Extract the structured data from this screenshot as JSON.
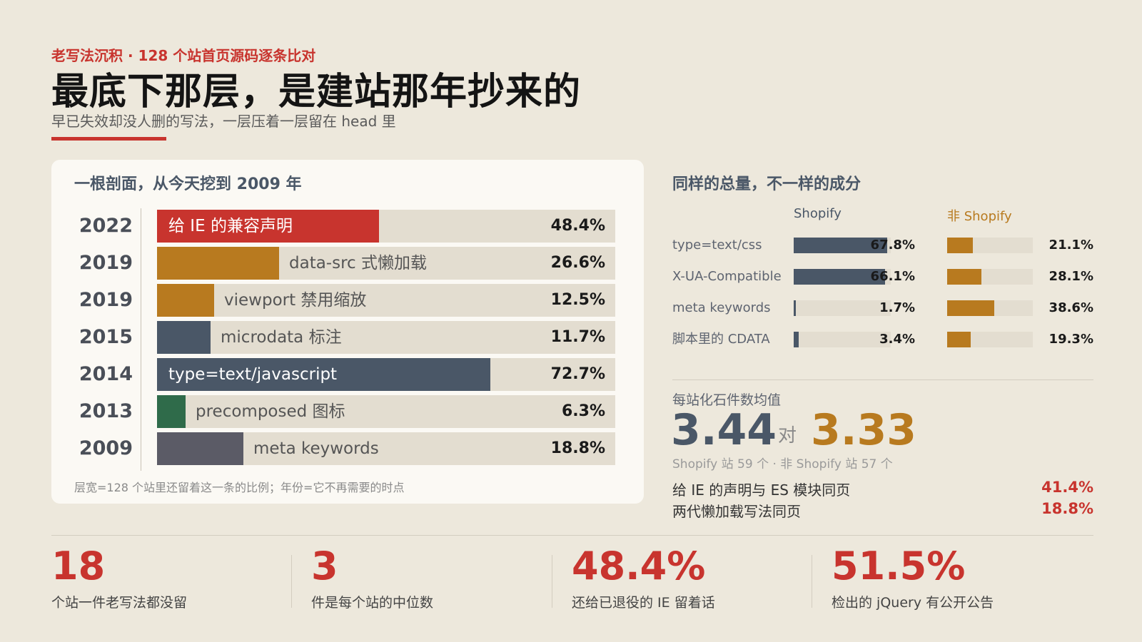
{
  "header": {
    "kicker": "老写法沉积 · 128 个站首页源码逐条比对",
    "title": "最底下那层，是建站那年抄来的",
    "subtitle": "早已失效却没人删的写法，一层压着一层留在 head 里"
  },
  "colors": {
    "red": "#c8342e",
    "ochre": "#b87a1f",
    "slate": "#4a5767",
    "green": "#2f6b4a",
    "gray": "#5b5b66",
    "track": "#e3ddd0"
  },
  "chart_data": [
    {
      "type": "bar",
      "title": "一根剖面，从今天挖到 2009 年",
      "note": "层宽=128 个站里还留着这一条的比例；年份=它不再需要的时点",
      "xlim": [
        0,
        100
      ],
      "rows": [
        {
          "year": "2022",
          "label": "给 IE 的兼容声明",
          "value": 48.4,
          "value_label": "48.4%",
          "color": "#c8342e"
        },
        {
          "year": "2019",
          "label": "data-src 式懒加载",
          "value": 26.6,
          "value_label": "26.6%",
          "color": "#b87a1f"
        },
        {
          "year": "2019",
          "label": "viewport 禁用缩放",
          "value": 12.5,
          "value_label": "12.5%",
          "color": "#b87a1f"
        },
        {
          "year": "2015",
          "label": "microdata 标注",
          "value": 11.7,
          "value_label": "11.7%",
          "color": "#4a5767"
        },
        {
          "year": "2014",
          "label": "type=text/javascript",
          "value": 72.7,
          "value_label": "72.7%",
          "color": "#4a5767"
        },
        {
          "year": "2013",
          "label": "precomposed 图标",
          "value": 6.3,
          "value_label": "6.3%",
          "color": "#2f6b4a"
        },
        {
          "year": "2009",
          "label": "meta keywords",
          "value": 18.8,
          "value_label": "18.8%",
          "color": "#5b5b66"
        }
      ]
    },
    {
      "type": "bar",
      "title": "同样的总量，不一样的成分",
      "xlim": [
        0,
        100
      ],
      "categories": [
        "type=text/css",
        "X-UA-Compatible",
        "meta keywords",
        "脚本里的 CDATA"
      ],
      "series": [
        {
          "name": "Shopify",
          "color": "#4a5767",
          "values": [
            67.8,
            66.1,
            1.7,
            3.4
          ],
          "labels": [
            "67.8%",
            "66.1%",
            "1.7%",
            "3.4%"
          ]
        },
        {
          "name": "非 Shopify",
          "color": "#b87a1f",
          "values": [
            21.1,
            28.1,
            38.6,
            19.3
          ],
          "labels": [
            "21.1%",
            "28.1%",
            "38.6%",
            "19.3%"
          ]
        }
      ]
    }
  ],
  "averages": {
    "label": "每站化石件数均值",
    "shopify": "3.44",
    "vs": "对",
    "non_shopify": "3.33",
    "note": "Shopify 站 59 个 · 非 Shopify 站 57 个"
  },
  "cooccurrence": [
    {
      "label": "给 IE 的声明与 ES 模块同页",
      "value": "41.4%"
    },
    {
      "label": "两代懒加载写法同页",
      "value": "18.8%"
    }
  ],
  "stats": [
    {
      "number": "18",
      "caption": "个站一件老写法都没留"
    },
    {
      "number": "3",
      "caption": "件是每个站的中位数"
    },
    {
      "number": "48.4%",
      "caption": "还给已退役的 IE 留着话"
    },
    {
      "number": "51.5%",
      "caption": "检出的 jQuery 有公开公告"
    }
  ]
}
